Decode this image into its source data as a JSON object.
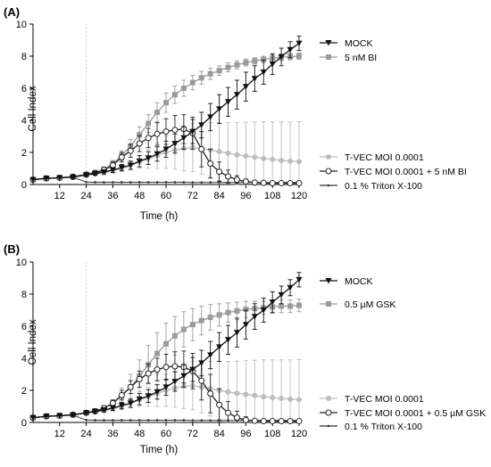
{
  "chart_data": [
    {
      "panel_label": "(A)",
      "type": "line",
      "xlabel": "Time (h)",
      "ylabel": "Cell Index",
      "xlim": [
        0,
        120
      ],
      "ylim": [
        0,
        10
      ],
      "x_ticks": [
        12,
        24,
        36,
        48,
        60,
        72,
        84,
        96,
        108,
        120
      ],
      "y_ticks": [
        0,
        2,
        4,
        6,
        8,
        10
      ],
      "marker_line_x": 24,
      "series": [
        {
          "name": "MOCK",
          "color": "#111111",
          "marker": "triangle-down",
          "x": [
            0,
            6,
            12,
            18,
            24,
            28,
            32,
            36,
            40,
            44,
            48,
            52,
            56,
            60,
            64,
            68,
            72,
            76,
            80,
            84,
            88,
            92,
            96,
            100,
            104,
            108,
            112,
            116,
            120
          ],
          "y": [
            0.3,
            0.38,
            0.42,
            0.46,
            0.6,
            0.68,
            0.78,
            0.9,
            1.05,
            1.2,
            1.45,
            1.65,
            1.9,
            2.2,
            2.55,
            2.9,
            3.3,
            3.7,
            4.2,
            4.7,
            5.15,
            5.6,
            6.1,
            6.6,
            7.0,
            7.5,
            7.95,
            8.4,
            8.8
          ],
          "error": [
            0.05,
            0.05,
            0.05,
            0.06,
            0.08,
            0.1,
            0.12,
            0.15,
            0.2,
            0.25,
            0.35,
            0.4,
            0.45,
            0.5,
            0.6,
            0.7,
            0.75,
            0.8,
            0.85,
            0.9,
            0.9,
            0.9,
            0.9,
            0.8,
            0.75,
            0.65,
            0.55,
            0.5,
            0.45
          ]
        },
        {
          "name": "5 nM BI",
          "color": "#9a9a9a",
          "marker": "square",
          "x": [
            0,
            6,
            12,
            18,
            24,
            28,
            32,
            36,
            40,
            44,
            48,
            52,
            56,
            60,
            64,
            68,
            72,
            76,
            80,
            84,
            88,
            92,
            96,
            100,
            104,
            108,
            112,
            116,
            120
          ],
          "y": [
            0.3,
            0.38,
            0.42,
            0.48,
            0.62,
            0.75,
            0.95,
            1.3,
            1.8,
            2.4,
            3.1,
            3.8,
            4.5,
            5.1,
            5.6,
            6.0,
            6.35,
            6.65,
            6.9,
            7.1,
            7.3,
            7.45,
            7.6,
            7.7,
            7.8,
            7.88,
            7.93,
            7.97,
            8.0
          ],
          "error": [
            0.05,
            0.05,
            0.05,
            0.06,
            0.08,
            0.1,
            0.15,
            0.2,
            0.3,
            0.4,
            0.5,
            0.55,
            0.6,
            0.6,
            0.55,
            0.5,
            0.45,
            0.4,
            0.35,
            0.3,
            0.28,
            0.25,
            0.22,
            0.2,
            0.2,
            0.2,
            0.2,
            0.2,
            0.2
          ]
        },
        {
          "name": "T-VEC MOI 0.0001",
          "color": "#bdbdbd",
          "marker": "circle-filled",
          "x": [
            0,
            6,
            12,
            18,
            24,
            28,
            32,
            36,
            40,
            44,
            48,
            52,
            56,
            60,
            64,
            68,
            72,
            76,
            80,
            84,
            88,
            92,
            96,
            100,
            104,
            108,
            112,
            116,
            120
          ],
          "y": [
            0.3,
            0.38,
            0.42,
            0.46,
            0.6,
            0.65,
            0.72,
            0.85,
            1.0,
            1.2,
            1.4,
            1.6,
            1.8,
            2.0,
            2.15,
            2.25,
            2.3,
            2.25,
            2.15,
            2.05,
            1.95,
            1.85,
            1.78,
            1.7,
            1.62,
            1.56,
            1.5,
            1.45,
            1.42
          ],
          "error": [
            0.05,
            0.05,
            0.05,
            0.06,
            0.08,
            0.1,
            0.12,
            0.15,
            0.2,
            0.3,
            0.4,
            0.6,
            0.8,
            1.0,
            1.2,
            1.4,
            1.5,
            1.6,
            1.7,
            1.8,
            1.9,
            2.0,
            2.1,
            2.2,
            2.3,
            2.35,
            2.4,
            2.45,
            2.5
          ]
        },
        {
          "name": "T-VEC MOI 0.0001 + 5 nM BI",
          "color": "#222222",
          "marker": "circle-open",
          "x": [
            0,
            6,
            12,
            18,
            24,
            28,
            32,
            36,
            40,
            44,
            48,
            52,
            56,
            60,
            64,
            68,
            72,
            76,
            80,
            84,
            88,
            92,
            96,
            100,
            104,
            108,
            112,
            116,
            120
          ],
          "y": [
            0.3,
            0.38,
            0.42,
            0.48,
            0.62,
            0.72,
            0.9,
            1.2,
            1.7,
            2.1,
            2.55,
            2.9,
            3.15,
            3.3,
            3.4,
            3.45,
            3.2,
            2.2,
            1.3,
            0.8,
            0.5,
            0.3,
            0.18,
            0.12,
            0.1,
            0.08,
            0.08,
            0.08,
            0.08
          ],
          "error": [
            0.05,
            0.05,
            0.05,
            0.06,
            0.08,
            0.1,
            0.15,
            0.2,
            0.3,
            0.4,
            0.5,
            0.6,
            0.7,
            0.8,
            0.9,
            0.9,
            1.0,
            1.1,
            0.9,
            0.6,
            0.4,
            0.25,
            0.15,
            0.1,
            0.08,
            0.08,
            0.08,
            0.08,
            0.08
          ]
        },
        {
          "name": "0.1 % Triton X-100",
          "color": "#333333",
          "marker": "dot-small",
          "x": [
            0,
            6,
            12,
            18,
            24,
            28,
            32,
            36,
            40,
            44,
            48,
            52,
            56,
            60,
            64,
            68,
            72,
            76,
            80,
            84,
            88,
            92,
            96,
            100,
            104,
            108,
            112,
            116,
            120
          ],
          "y": [
            0.3,
            0.38,
            0.42,
            0.45,
            0.15,
            0.14,
            0.14,
            0.14,
            0.14,
            0.14,
            0.14,
            0.14,
            0.14,
            0.14,
            0.14,
            0.14,
            0.13,
            0.13,
            0.13,
            0.13,
            0.13,
            0.13,
            0.13,
            0.13,
            0.13,
            0.13,
            0.13,
            0.13,
            0.13
          ],
          "error": [
            0.03,
            0.03,
            0.03,
            0.03,
            0.03,
            0.03,
            0.03,
            0.03,
            0.03,
            0.03,
            0.03,
            0.03,
            0.03,
            0.03,
            0.03,
            0.03,
            0.03,
            0.03,
            0.03,
            0.03,
            0.03,
            0.03,
            0.03,
            0.03,
            0.03,
            0.03,
            0.03,
            0.03,
            0.03
          ]
        }
      ]
    },
    {
      "panel_label": "(B)",
      "type": "line",
      "xlabel": "Time (h)",
      "ylabel": "Cell Index",
      "xlim": [
        0,
        120
      ],
      "ylim": [
        0,
        10
      ],
      "x_ticks": [
        12,
        24,
        36,
        48,
        60,
        72,
        84,
        96,
        108,
        120
      ],
      "y_ticks": [
        0,
        2,
        4,
        6,
        8,
        10
      ],
      "marker_line_x": 24,
      "series": [
        {
          "name": "MOCK",
          "color": "#111111",
          "marker": "triangle-down",
          "x": [
            0,
            6,
            12,
            18,
            24,
            28,
            32,
            36,
            40,
            44,
            48,
            52,
            56,
            60,
            64,
            68,
            72,
            76,
            80,
            84,
            88,
            92,
            96,
            100,
            104,
            108,
            112,
            116,
            120
          ],
          "y": [
            0.3,
            0.38,
            0.42,
            0.46,
            0.6,
            0.68,
            0.78,
            0.9,
            1.05,
            1.2,
            1.45,
            1.65,
            1.9,
            2.2,
            2.55,
            2.9,
            3.3,
            3.7,
            4.2,
            4.7,
            5.15,
            5.6,
            6.1,
            6.6,
            7.0,
            7.5,
            7.95,
            8.4,
            8.9
          ],
          "error": [
            0.05,
            0.05,
            0.05,
            0.06,
            0.08,
            0.1,
            0.12,
            0.15,
            0.2,
            0.25,
            0.35,
            0.4,
            0.45,
            0.5,
            0.6,
            0.7,
            0.75,
            0.8,
            0.85,
            0.9,
            0.9,
            0.9,
            0.9,
            0.8,
            0.75,
            0.65,
            0.55,
            0.5,
            0.45
          ]
        },
        {
          "name": "0.5 µM GSK",
          "color": "#9a9a9a",
          "marker": "square",
          "x": [
            0,
            6,
            12,
            18,
            24,
            28,
            32,
            36,
            40,
            44,
            48,
            52,
            56,
            60,
            64,
            68,
            72,
            76,
            80,
            84,
            88,
            92,
            96,
            100,
            104,
            108,
            112,
            116,
            120
          ],
          "y": [
            0.3,
            0.38,
            0.42,
            0.48,
            0.6,
            0.72,
            0.9,
            1.2,
            1.65,
            2.2,
            2.9,
            3.6,
            4.3,
            4.9,
            5.4,
            5.8,
            6.1,
            6.35,
            6.55,
            6.7,
            6.85,
            6.95,
            7.05,
            7.1,
            7.15,
            7.2,
            7.25,
            7.25,
            7.3
          ],
          "error": [
            0.05,
            0.05,
            0.05,
            0.06,
            0.08,
            0.1,
            0.15,
            0.2,
            0.5,
            0.8,
            1.0,
            1.2,
            1.3,
            1.3,
            1.2,
            1.1,
            1.0,
            0.9,
            0.8,
            0.7,
            0.6,
            0.55,
            0.5,
            0.45,
            0.4,
            0.4,
            0.4,
            0.4,
            0.4
          ]
        },
        {
          "name": "T-VEC MOI 0.0001",
          "color": "#bdbdbd",
          "marker": "circle-filled",
          "x": [
            0,
            6,
            12,
            18,
            24,
            28,
            32,
            36,
            40,
            44,
            48,
            52,
            56,
            60,
            64,
            68,
            72,
            76,
            80,
            84,
            88,
            92,
            96,
            100,
            104,
            108,
            112,
            116,
            120
          ],
          "y": [
            0.3,
            0.38,
            0.42,
            0.46,
            0.6,
            0.65,
            0.72,
            0.85,
            1.0,
            1.2,
            1.4,
            1.6,
            1.8,
            2.0,
            2.15,
            2.25,
            2.3,
            2.2,
            2.1,
            2.0,
            1.9,
            1.82,
            1.75,
            1.68,
            1.6,
            1.55,
            1.5,
            1.45,
            1.42
          ],
          "error": [
            0.05,
            0.05,
            0.05,
            0.06,
            0.08,
            0.1,
            0.12,
            0.15,
            0.2,
            0.3,
            0.4,
            0.6,
            0.8,
            1.0,
            1.2,
            1.4,
            1.5,
            1.6,
            1.7,
            1.8,
            1.9,
            2.0,
            2.1,
            2.2,
            2.3,
            2.35,
            2.4,
            2.45,
            2.5
          ]
        },
        {
          "name": "T-VEC MOI 0.0001 + 0.5 µM GSK",
          "color": "#222222",
          "marker": "circle-open",
          "x": [
            0,
            6,
            12,
            18,
            24,
            28,
            32,
            36,
            40,
            44,
            48,
            52,
            56,
            60,
            64,
            68,
            72,
            76,
            80,
            84,
            88,
            92,
            96,
            100,
            104,
            108,
            112,
            116,
            120
          ],
          "y": [
            0.3,
            0.38,
            0.42,
            0.48,
            0.6,
            0.7,
            0.88,
            1.2,
            1.7,
            2.2,
            2.7,
            3.05,
            3.3,
            3.45,
            3.5,
            3.45,
            3.2,
            2.6,
            1.8,
            1.1,
            0.6,
            0.3,
            0.15,
            0.1,
            0.08,
            0.08,
            0.08,
            0.08,
            0.08
          ],
          "error": [
            0.05,
            0.05,
            0.05,
            0.06,
            0.08,
            0.1,
            0.15,
            0.2,
            0.3,
            0.4,
            0.5,
            0.6,
            0.7,
            0.8,
            0.9,
            1.0,
            1.1,
            1.2,
            1.2,
            1.0,
            0.7,
            0.4,
            0.2,
            0.1,
            0.08,
            0.08,
            0.08,
            0.08,
            0.08
          ]
        },
        {
          "name": "0.1 % Triton X-100",
          "color": "#333333",
          "marker": "dot-small",
          "x": [
            0,
            6,
            12,
            18,
            24,
            28,
            32,
            36,
            40,
            44,
            48,
            52,
            56,
            60,
            64,
            68,
            72,
            76,
            80,
            84,
            88,
            92,
            96,
            100,
            104,
            108,
            112,
            116,
            120
          ],
          "y": [
            0.3,
            0.38,
            0.42,
            0.45,
            0.15,
            0.14,
            0.14,
            0.14,
            0.14,
            0.14,
            0.14,
            0.14,
            0.14,
            0.14,
            0.14,
            0.14,
            0.13,
            0.13,
            0.13,
            0.13,
            0.13,
            0.13,
            0.13,
            0.13,
            0.13,
            0.13,
            0.13,
            0.13,
            0.13
          ],
          "error": [
            0.03,
            0.03,
            0.03,
            0.03,
            0.03,
            0.03,
            0.03,
            0.03,
            0.03,
            0.03,
            0.03,
            0.03,
            0.03,
            0.03,
            0.03,
            0.03,
            0.03,
            0.03,
            0.03,
            0.03,
            0.03,
            0.03,
            0.03,
            0.03,
            0.03,
            0.03,
            0.03,
            0.03,
            0.03
          ]
        }
      ]
    }
  ]
}
